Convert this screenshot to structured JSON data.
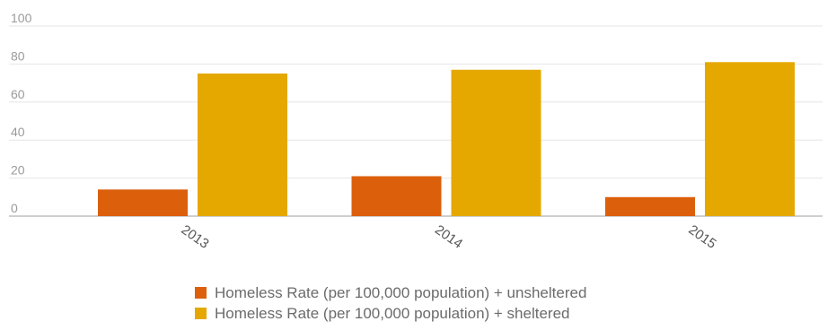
{
  "chart_data": {
    "type": "bar",
    "categories": [
      "2013",
      "2014",
      "2015"
    ],
    "series": [
      {
        "name": "Homeless Rate (per 100,000 population) + unsheltered",
        "color": "#dc5f0c",
        "values": [
          14,
          21,
          10
        ]
      },
      {
        "name": "Homeless Rate (per 100,000 population) + sheltered",
        "color": "#e5a800",
        "values": [
          75,
          77,
          81
        ]
      }
    ],
    "title": "",
    "xlabel": "",
    "ylabel": "",
    "ylim": [
      0,
      100
    ],
    "yticks": [
      "0",
      "20",
      "40",
      "60",
      "80",
      "100"
    ],
    "grid": true,
    "legend_position": "bottom"
  },
  "colors": {
    "gridline": "#e6e6e6",
    "baseline": "#cfcfcf"
  }
}
